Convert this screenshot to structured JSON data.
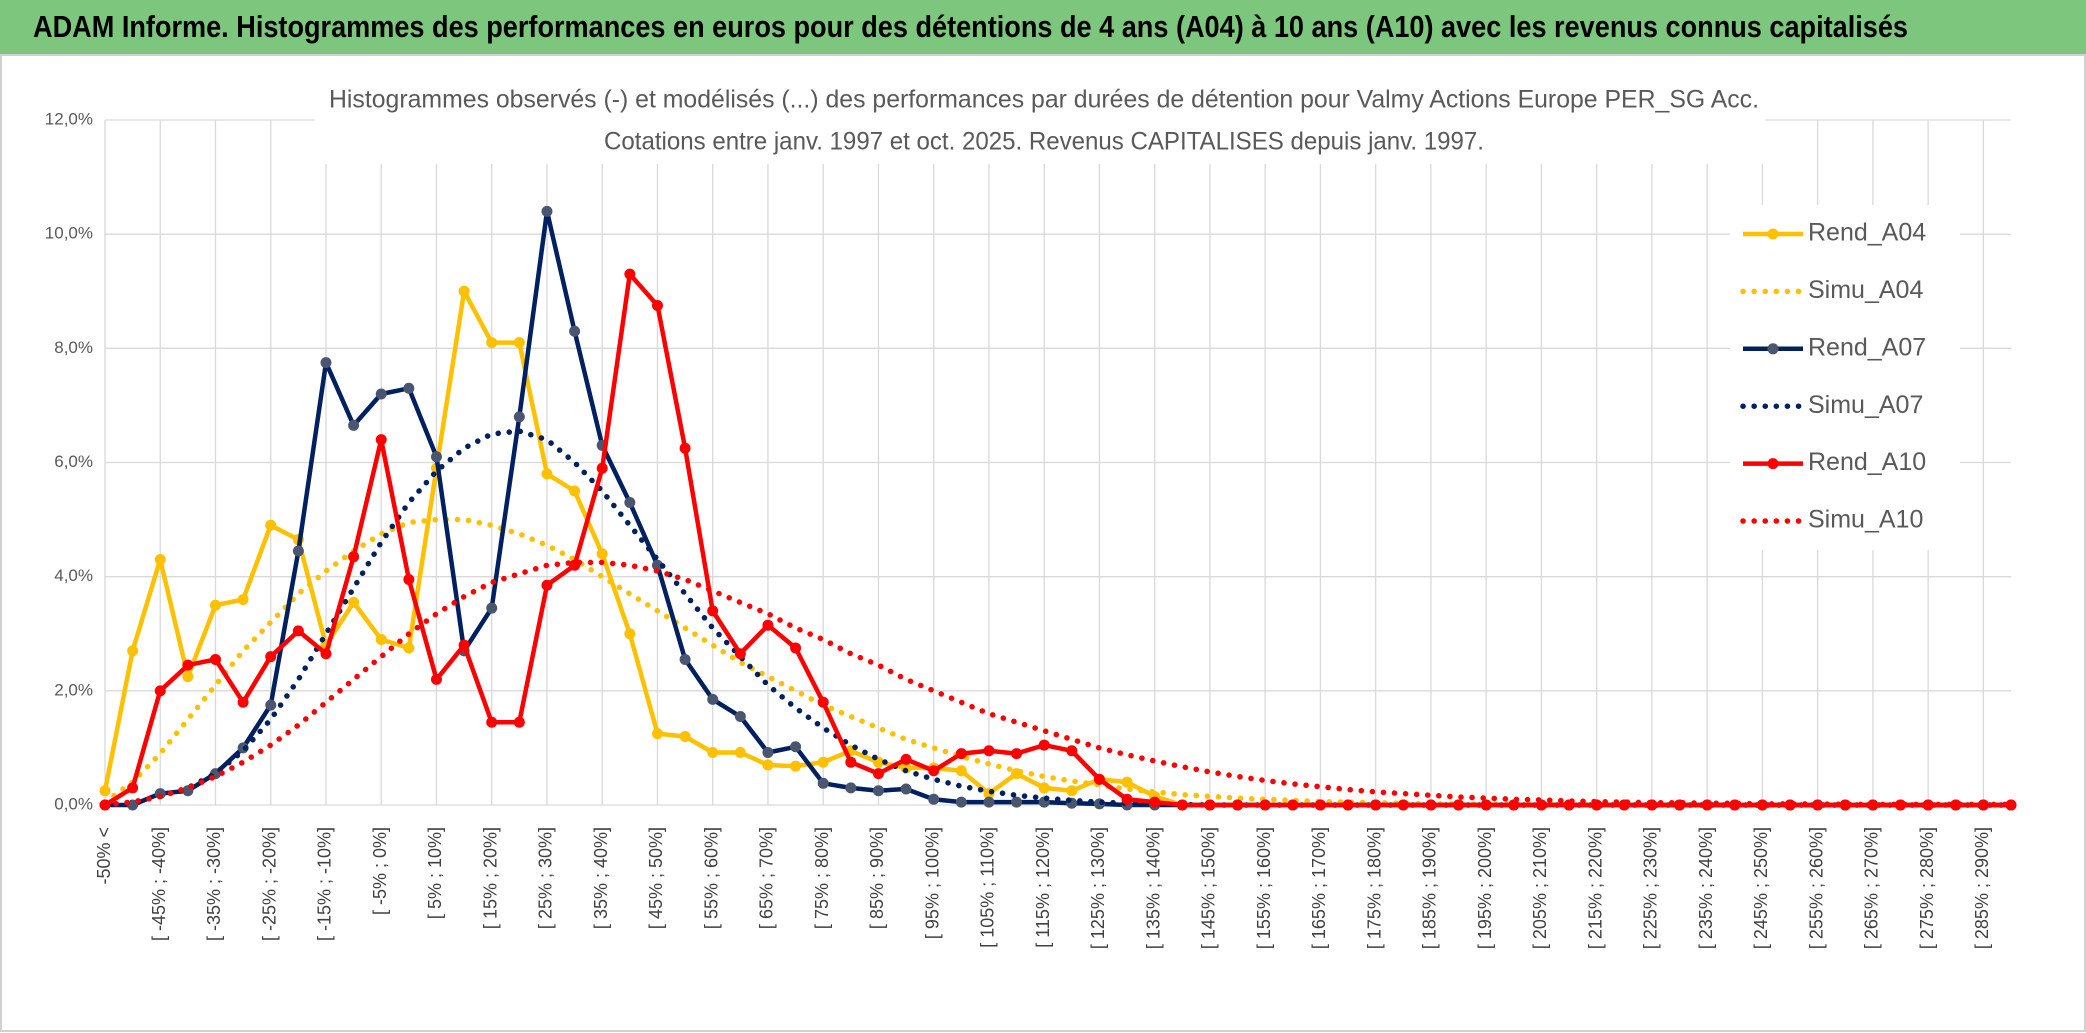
{
  "header": {
    "title": "ADAM Informe. Histogrammes des performances en euros pour des détentions de 4 ans (A04) à 10 ans (A10) avec les revenus connus capitalisés"
  },
  "chart_data": {
    "type": "line",
    "title": "Histogrammes observés (-) et modélisés (...) des performances par durées de détention pour Valmy Actions Europe PER_SG Acc.",
    "subtitle": "Cotations entre janv. 1997 et oct. 2025. Revenus CAPITALISES depuis janv. 1997.",
    "categories": [
      "-50% <",
      null,
      "[ -45% ; -40%]",
      null,
      "[ -35% ; -30%]",
      null,
      "[ -25% ; -20%]",
      null,
      "[ -15% ; -10%]",
      null,
      "[ -5% ; 0%]",
      null,
      "[ 5% ; 10%]",
      null,
      "[ 15% ; 20%]",
      null,
      "[ 25% ; 30%]",
      null,
      "[ 35% ; 40%]",
      null,
      "[ 45% ; 50%]",
      null,
      "[ 55% ; 60%]",
      null,
      "[ 65% ; 70%]",
      null,
      "[ 75% ; 80%]",
      null,
      "[ 85% ; 90%]",
      null,
      "[ 95% ; 100%]",
      null,
      "[ 105% ; 110%]",
      null,
      "[ 115% ; 120%]",
      null,
      "[ 125% ; 130%]",
      null,
      "[ 135% ; 140%]",
      null,
      "[ 145% ; 150%]",
      null,
      "[ 155% ; 160%]",
      null,
      "[ 165% ; 170%]",
      null,
      "[ 175% ; 180%]",
      null,
      "[ 185% ; 190%]",
      null,
      "[ 195% ; 200%]",
      null,
      "[ 205% ; 210%]",
      null,
      "[ 215% ; 220%]",
      null,
      "[ 225% ; 230%]",
      null,
      "[ 235% ; 240%]",
      null,
      "[ 245% ; 250%]",
      null,
      "[ 255% ; 260%]",
      null,
      "[ 265% ; 270%]",
      null,
      "[ 275% ; 280%]",
      null,
      "[ 285% ; 290%]",
      null
    ],
    "ylim": [
      0,
      12
    ],
    "yticks": [
      {
        "value": 0,
        "label": "0,0%"
      },
      {
        "value": 2,
        "label": "2,0%"
      },
      {
        "value": 4,
        "label": "4,0%"
      },
      {
        "value": 6,
        "label": "6,0%"
      },
      {
        "value": 8,
        "label": "8,0%"
      },
      {
        "value": 10,
        "label": "10,0%"
      },
      {
        "value": 12,
        "label": "12,0%"
      }
    ],
    "grid": true,
    "legend": "right",
    "series": [
      {
        "name": "Rend_A04",
        "color": "#ffc000",
        "line_style": "solid",
        "markers": true,
        "values": [
          0.25,
          2.7,
          4.3,
          2.25,
          3.5,
          3.6,
          4.9,
          4.65,
          2.8,
          3.55,
          2.9,
          2.75,
          5.9,
          9.0,
          8.1,
          8.1,
          5.8,
          5.5,
          4.4,
          3.0,
          1.25,
          1.2,
          0.92,
          0.92,
          0.7,
          0.68,
          0.75,
          0.95,
          0.75,
          0.65,
          0.65,
          0.6,
          0.2,
          0.55,
          0.3,
          0.25,
          0.45,
          0.4,
          0.15,
          0,
          0,
          0,
          0,
          0,
          0,
          0,
          0,
          0,
          0,
          0,
          0,
          0,
          0,
          0,
          0,
          0,
          0,
          0,
          0,
          0,
          0,
          0,
          0,
          0,
          0,
          0,
          0,
          0,
          0,
          0
        ]
      },
      {
        "name": "Simu_A04",
        "color": "#ffc000",
        "line_style": "dotted",
        "markers": false,
        "values": [
          0.05,
          0.4,
          0.9,
          1.5,
          2.1,
          2.7,
          3.2,
          3.7,
          4.1,
          4.45,
          4.75,
          4.95,
          5.0,
          5.0,
          4.9,
          4.75,
          4.55,
          4.3,
          4.0,
          3.7,
          3.4,
          3.1,
          2.8,
          2.5,
          2.25,
          2.0,
          1.75,
          1.55,
          1.35,
          1.15,
          1.0,
          0.85,
          0.72,
          0.6,
          0.5,
          0.42,
          0.35,
          0.28,
          0.23,
          0.18,
          0.15,
          0.12,
          0.1,
          0.08,
          0.06,
          0.05,
          0.04,
          0.03,
          0.02,
          0.02,
          0.01,
          0.01,
          0.01,
          0.01,
          0.01,
          0.01,
          0,
          0,
          0,
          0,
          0,
          0,
          0,
          0,
          0,
          0,
          0,
          0,
          0,
          0
        ]
      },
      {
        "name": "Rend_A07",
        "color": "#002060",
        "marker_color": "#4a5670",
        "line_style": "solid",
        "markers": true,
        "values": [
          0,
          0,
          0.2,
          0.25,
          0.55,
          1.0,
          1.75,
          4.45,
          7.75,
          6.65,
          7.2,
          7.3,
          6.1,
          2.7,
          3.45,
          6.8,
          10.4,
          8.3,
          6.3,
          5.3,
          4.2,
          2.55,
          1.85,
          1.55,
          0.92,
          1.02,
          0.38,
          0.3,
          0.25,
          0.28,
          0.1,
          0.05,
          0.05,
          0.05,
          0.05,
          0.03,
          0.02,
          0,
          0,
          0,
          0,
          0,
          0,
          0,
          0,
          0,
          0,
          0,
          0,
          0,
          0,
          0,
          0,
          0,
          0,
          0,
          0,
          0,
          0,
          0,
          0,
          0,
          0,
          0,
          0,
          0,
          0,
          0,
          0,
          0
        ]
      },
      {
        "name": "Simu_A07",
        "color": "#002060",
        "line_style": "dotted",
        "markers": false,
        "values": [
          0,
          0.05,
          0.15,
          0.3,
          0.55,
          0.95,
          1.5,
          2.2,
          3.0,
          3.8,
          4.6,
          5.3,
          5.85,
          6.25,
          6.5,
          6.55,
          6.4,
          6.0,
          5.5,
          4.9,
          4.3,
          3.7,
          3.1,
          2.6,
          2.1,
          1.7,
          1.35,
          1.05,
          0.8,
          0.6,
          0.45,
          0.33,
          0.24,
          0.17,
          0.12,
          0.08,
          0.05,
          0.03,
          0.02,
          0.01,
          0,
          0,
          0,
          0,
          0,
          0,
          0,
          0,
          0,
          0,
          0,
          0,
          0,
          0,
          0,
          0,
          0,
          0,
          0,
          0,
          0,
          0,
          0,
          0,
          0,
          0,
          0,
          0,
          0,
          0
        ]
      },
      {
        "name": "Rend_A10",
        "color": "#ff0000",
        "line_style": "solid",
        "markers": true,
        "values": [
          0,
          0.3,
          2.0,
          2.45,
          2.55,
          1.8,
          2.6,
          3.05,
          2.65,
          4.35,
          6.4,
          3.95,
          2.2,
          2.8,
          1.45,
          1.45,
          3.85,
          4.2,
          5.9,
          9.3,
          8.75,
          6.25,
          3.4,
          2.65,
          3.15,
          2.75,
          1.8,
          0.75,
          0.55,
          0.8,
          0.6,
          0.9,
          0.95,
          0.9,
          1.05,
          0.95,
          0.45,
          0.1,
          0.05,
          0,
          0,
          0,
          0,
          0,
          0,
          0,
          0,
          0,
          0,
          0,
          0,
          0,
          0,
          0,
          0,
          0,
          0,
          0,
          0,
          0,
          0,
          0,
          0,
          0,
          0,
          0,
          0,
          0,
          0,
          0
        ]
      },
      {
        "name": "Simu_A10",
        "color": "#ff0000",
        "line_style": "dotted",
        "markers": false,
        "values": [
          0,
          0.05,
          0.15,
          0.3,
          0.5,
          0.75,
          1.05,
          1.4,
          1.8,
          2.2,
          2.6,
          3.0,
          3.35,
          3.65,
          3.9,
          4.05,
          4.2,
          4.25,
          4.25,
          4.2,
          4.1,
          3.95,
          3.75,
          3.55,
          3.35,
          3.1,
          2.9,
          2.65,
          2.45,
          2.2,
          2.0,
          1.8,
          1.6,
          1.45,
          1.3,
          1.15,
          1.0,
          0.88,
          0.77,
          0.67,
          0.58,
          0.5,
          0.43,
          0.37,
          0.32,
          0.27,
          0.23,
          0.2,
          0.17,
          0.14,
          0.12,
          0.1,
          0.09,
          0.07,
          0.06,
          0.05,
          0.04,
          0.04,
          0.03,
          0.03,
          0.02,
          0.02,
          0.02,
          0.01,
          0.01,
          0.01,
          0.01,
          0.01,
          0.01,
          0.01
        ]
      }
    ]
  }
}
